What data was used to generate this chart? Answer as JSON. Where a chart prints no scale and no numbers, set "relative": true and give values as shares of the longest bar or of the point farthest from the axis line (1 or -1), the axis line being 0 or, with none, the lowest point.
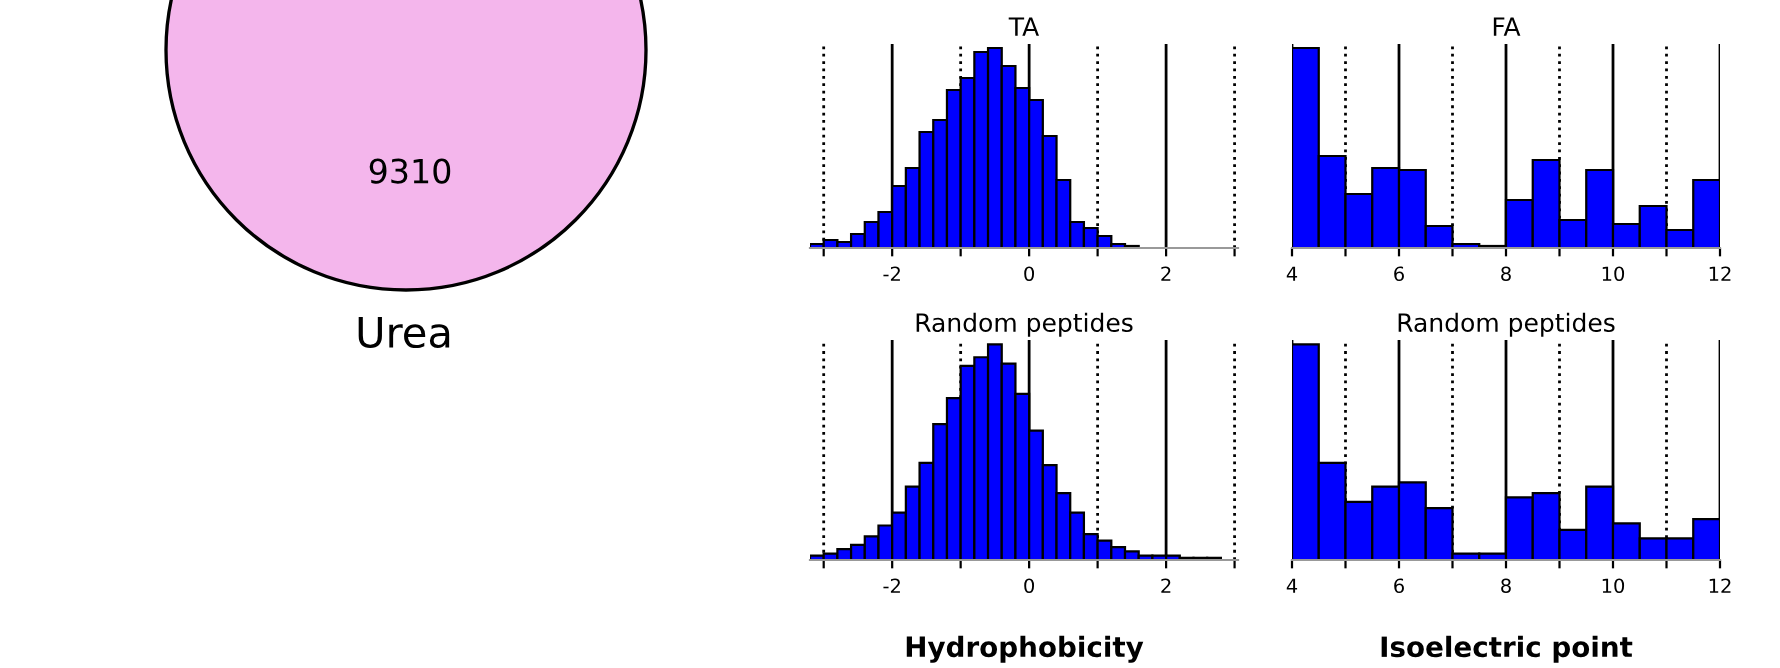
{
  "chart_data": [
    {
      "type": "bar",
      "title": "TA",
      "relative": true,
      "color": "#0000ff",
      "grid": "x",
      "xlim": [
        -3.2,
        3.05
      ],
      "xticks": [
        {
          "value": -3,
          "label": null
        },
        -2,
        {
          "value": -1,
          "label": null
        },
        0,
        {
          "value": 1,
          "label": null
        },
        2,
        {
          "value": 3,
          "label": null
        }
      ],
      "x": [
        -3.1,
        -2.9,
        -2.7,
        -2.5,
        -2.3,
        -2.1,
        -1.9,
        -1.7,
        -1.5,
        -1.3,
        -1.1,
        -0.9,
        -0.7,
        -0.5,
        -0.3,
        -0.1,
        0.1,
        0.3,
        0.5,
        0.7,
        0.9,
        1.1,
        1.3,
        1.5
      ],
      "values": [
        0.02,
        0.04,
        0.03,
        0.07,
        0.13,
        0.18,
        0.31,
        0.4,
        0.58,
        0.64,
        0.79,
        0.85,
        0.98,
        1,
        0.91,
        0.8,
        0.74,
        0.56,
        0.34,
        0.13,
        0.1,
        0.06,
        0.02,
        0.01
      ]
    },
    {
      "type": "bar",
      "title": "FA",
      "relative": true,
      "color": "#0000ff",
      "grid": "x",
      "xlim": [
        4,
        12
      ],
      "xticks": [
        4,
        {
          "value": 5,
          "label": null
        },
        6,
        {
          "value": 7,
          "label": null
        },
        8,
        {
          "value": 9,
          "label": null
        },
        10,
        {
          "value": 11,
          "label": null
        },
        12
      ],
      "x": [
        4.25,
        4.75,
        5.25,
        5.75,
        6.25,
        6.75,
        7.25,
        7.75,
        8.25,
        8.75,
        9.25,
        9.75,
        10.25,
        10.75,
        11.25,
        11.75
      ],
      "values": [
        1,
        0.46,
        0.27,
        0.4,
        0.39,
        0.11,
        0.02,
        0.01,
        0.24,
        0.44,
        0.14,
        0.39,
        0.12,
        0.21,
        0.09,
        0.34
      ]
    },
    {
      "type": "bar",
      "title": "Random peptides",
      "xlabel": "Hydrophobicity",
      "relative": true,
      "color": "#0000ff",
      "grid": "x",
      "xlim": [
        -3.2,
        3.05
      ],
      "xticks": [
        {
          "value": -3,
          "label": null
        },
        -2,
        {
          "value": -1,
          "label": null
        },
        0,
        {
          "value": 1,
          "label": null
        },
        2,
        {
          "value": 3,
          "label": null
        }
      ],
      "x": [
        -3.1,
        -2.9,
        -2.7,
        -2.5,
        -2.3,
        -2.1,
        -1.9,
        -1.7,
        -1.5,
        -1.3,
        -1.1,
        -0.9,
        -0.7,
        -0.5,
        -0.3,
        -0.1,
        0.1,
        0.3,
        0.5,
        0.7,
        0.9,
        1.1,
        1.3,
        1.5,
        1.7,
        1.9,
        2.1,
        2.3,
        2.5,
        2.7
      ],
      "values": [
        0.02,
        0.03,
        0.05,
        0.07,
        0.11,
        0.16,
        0.22,
        0.34,
        0.45,
        0.63,
        0.75,
        0.9,
        0.94,
        1,
        0.91,
        0.77,
        0.6,
        0.44,
        0.31,
        0.22,
        0.12,
        0.09,
        0.06,
        0.04,
        0.02,
        0.02,
        0.02,
        0.01,
        0.01,
        0.01
      ]
    },
    {
      "type": "bar",
      "title": "Random peptides",
      "xlabel": "Isoelectric point",
      "relative": true,
      "color": "#0000ff",
      "grid": "x",
      "xlim": [
        4,
        12
      ],
      "xticks": [
        4,
        {
          "value": 5,
          "label": null
        },
        6,
        {
          "value": 7,
          "label": null
        },
        8,
        {
          "value": 9,
          "label": null
        },
        10,
        {
          "value": 11,
          "label": null
        },
        12
      ],
      "x": [
        4.25,
        4.75,
        5.25,
        5.75,
        6.25,
        6.75,
        7.25,
        7.75,
        8.25,
        8.75,
        9.25,
        9.75,
        10.25,
        10.75,
        11.25,
        11.75
      ],
      "values": [
        1,
        0.45,
        0.27,
        0.34,
        0.36,
        0.24,
        0.03,
        0.03,
        0.29,
        0.31,
        0.14,
        0.34,
        0.17,
        0.1,
        0.1,
        0.19
      ]
    },
    {
      "type": "other",
      "annotations": [
        "9310",
        "Urea"
      ],
      "color": "#f4b6ec"
    }
  ]
}
